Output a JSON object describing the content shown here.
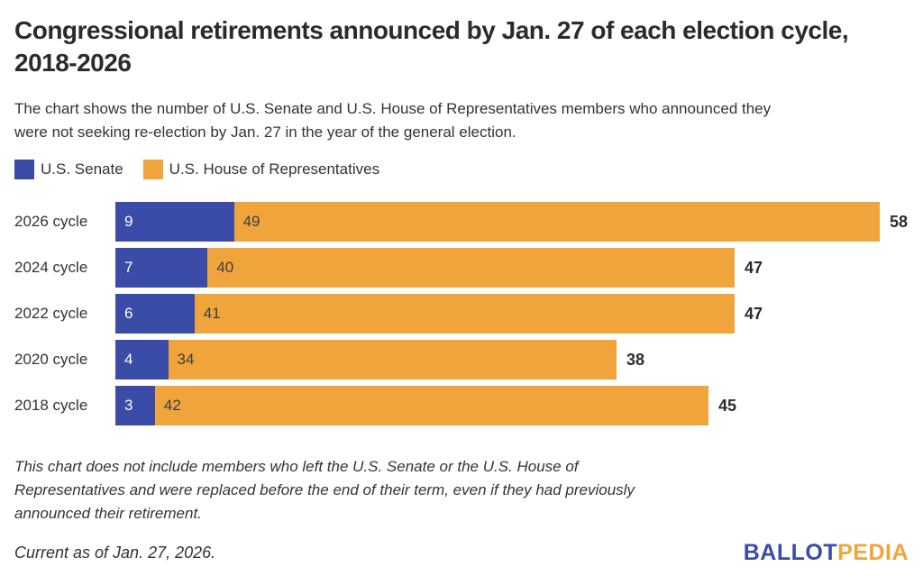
{
  "header": {
    "title_line1": "Congressional retirements announced by Jan. 27 of each election cycle,",
    "title_line2": "2018-2026",
    "subtitle": "The chart shows the number of U.S. Senate and U.S. House of Representatives members who announced they were not seeking re-election by Jan. 27 in the year of the general election."
  },
  "legend": {
    "items": [
      {
        "label": "U.S. Senate",
        "color": "#3A4BA8"
      },
      {
        "label": "U.S. House of Representatives",
        "color": "#F0A43C"
      }
    ]
  },
  "chart_data": {
    "type": "bar",
    "orientation": "horizontal",
    "stacked": true,
    "title": "Congressional retirements announced by Jan. 27 of each election cycle, 2018-2026",
    "categories": [
      "2026 cycle",
      "2024 cycle",
      "2022 cycle",
      "2020 cycle",
      "2018 cycle"
    ],
    "series": [
      {
        "name": "U.S. Senate",
        "color": "#3A4BA8",
        "value_text_color": "#FFFFFF",
        "values": [
          9,
          7,
          6,
          4,
          3
        ]
      },
      {
        "name": "U.S. House of Representatives",
        "color": "#F0A43C",
        "value_text_color": "#3C3C3C",
        "values": [
          49,
          40,
          41,
          34,
          42
        ]
      }
    ],
    "totals": [
      58,
      47,
      47,
      38,
      45
    ],
    "xmax": 58,
    "grid": false,
    "axes_shown": false,
    "legend_position": "top-left"
  },
  "footer": {
    "note": "This chart does not include members who left the U.S. Senate or the U.S. House of Representatives and were replaced before the end of their term, even if they had previously announced their retirement.",
    "current_as_of": "Current as of Jan. 27, 2026.",
    "logo": {
      "ballot": "BALLOT",
      "pedia": "PEDIA",
      "ballot_color": "#3A4BA8",
      "pedia_color": "#F0A43C"
    }
  },
  "colors": {
    "senate_blue": "#3A4BA8",
    "house_orange": "#F0A43C",
    "title_text": "#2b2b2b",
    "body_text": "#333333",
    "background": "#ffffff"
  }
}
